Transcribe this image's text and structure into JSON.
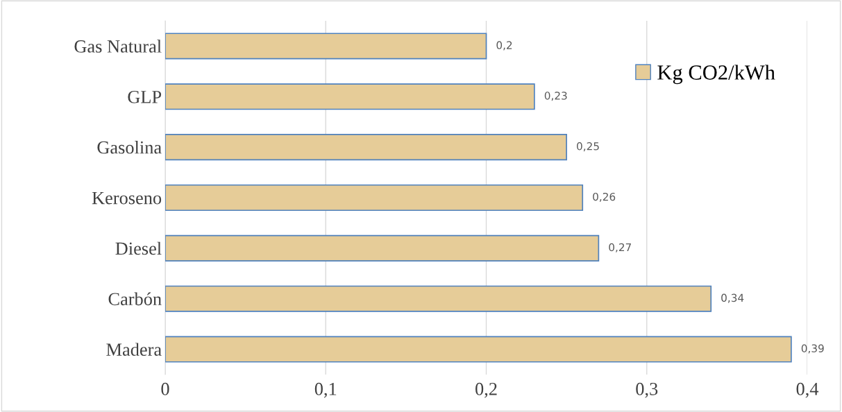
{
  "chart_data": {
    "type": "bar",
    "orientation": "horizontal",
    "categories": [
      "Gas Natural",
      "GLP",
      "Gasolina",
      "Keroseno",
      "Diesel",
      "Carbón",
      "Madera"
    ],
    "series": [
      {
        "name": "Kg CO2/kWh",
        "color": "#e6cc98",
        "values": [
          0.2,
          0.23,
          0.25,
          0.26,
          0.27,
          0.34,
          0.39
        ],
        "value_labels": [
          "0,2",
          "0,23",
          "0,25",
          "0,26",
          "0,27",
          "0,34",
          "0,39"
        ]
      }
    ],
    "xlim": [
      0,
      0.4
    ],
    "xticks": [
      0,
      {
        "value": 0.1,
        "label": "0,1"
      },
      {
        "value": 0.2,
        "label": "0,2"
      },
      {
        "value": 0.3,
        "label": "0,3"
      },
      {
        "value": 0.4,
        "label": "0,4"
      }
    ],
    "grid": "x",
    "legend": "top right"
  }
}
